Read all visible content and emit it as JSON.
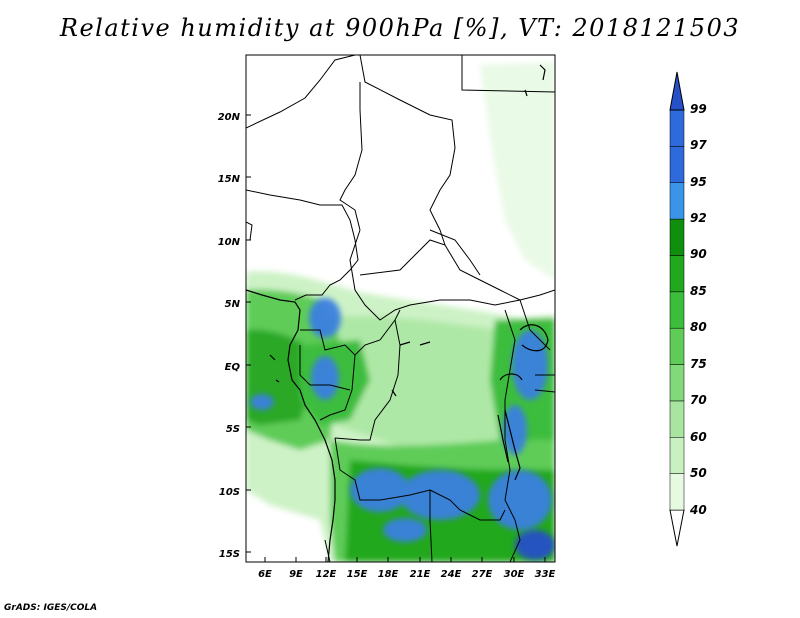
{
  "title": "Relative humidity at 900hPa [%], VT: 2018121503",
  "credit": "GrADS: IGES/COLA",
  "map": {
    "lon_range": [
      3,
      33.5
    ],
    "lat_range": [
      -16,
      24.5
    ],
    "lat_ticks": [
      "20N",
      "15N",
      "10N",
      "5N",
      "EQ",
      "5S",
      "10S",
      "15S"
    ],
    "lon_ticks": [
      "6E",
      "9E",
      "12E",
      "15E",
      "18E",
      "21E",
      "24E",
      "27E",
      "30E",
      "33E"
    ]
  },
  "colorbar": {
    "levels": [
      "40",
      "50",
      "60",
      "70",
      "75",
      "80",
      "85",
      "90",
      "92",
      "95",
      "97",
      "99"
    ],
    "colors": [
      "#ffffff",
      "#e6fae1",
      "#c8f0c0",
      "#a8e6a0",
      "#82d97a",
      "#5fcc58",
      "#3cbd3c",
      "#22a81e",
      "#108f0f",
      "#3a95e8",
      "#2e6ad9",
      "#2650c8"
    ]
  },
  "colors": {
    "wet_blue": "#3a80e0",
    "deep_blue": "#2650c8",
    "dark_green": "#22a81e",
    "mid_green": "#5fcc58",
    "light_green": "#a8e6a0",
    "pale_green": "#dff7da"
  }
}
